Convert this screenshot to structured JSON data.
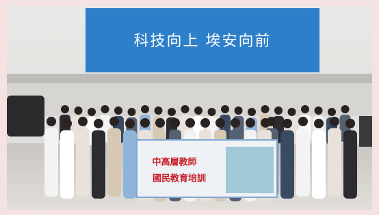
{
  "wall_sign": {
    "text": "科技向上 埃安向前"
  },
  "group_banner": {
    "line_1": "中高層教師",
    "line_2": "國民教育培訓"
  }
}
